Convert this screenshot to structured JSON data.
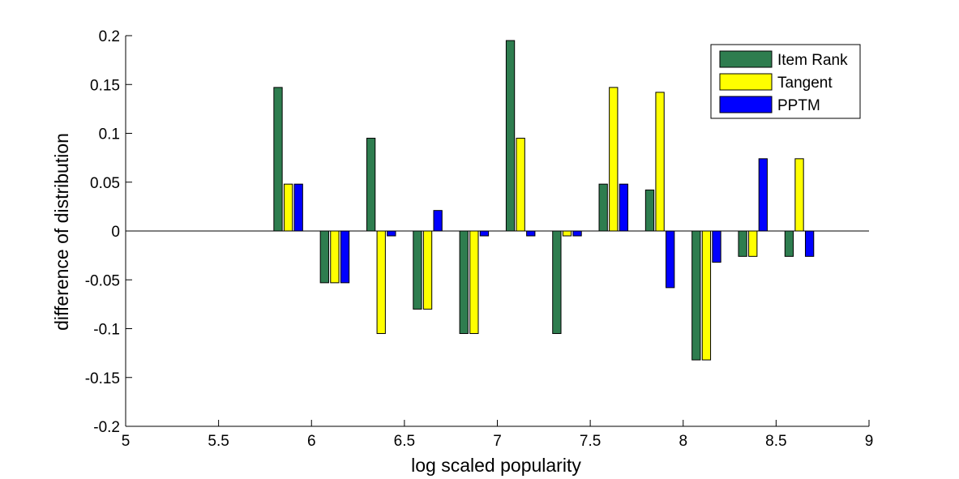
{
  "chart_data": {
    "type": "bar",
    "xlabel": "log scaled popularity",
    "ylabel": "difference of distribution",
    "xlim": [
      5,
      9
    ],
    "ylim": [
      -0.2,
      0.2
    ],
    "xticks": [
      "5",
      "5.5",
      "6",
      "6.5",
      "7",
      "7.5",
      "8",
      "8.5",
      "9"
    ],
    "yticks": [
      "-0.2",
      "-0.15",
      "-0.1",
      "-0.05",
      "0",
      "0.05",
      "0.1",
      "0.15",
      "0.2"
    ],
    "x": [
      5.875,
      6.125,
      6.375,
      6.625,
      6.875,
      7.125,
      7.375,
      7.625,
      7.875,
      8.125,
      8.375,
      8.625
    ],
    "series": [
      {
        "name": "Item Rank",
        "color": "#2e7d4f",
        "values": [
          0.147,
          -0.053,
          0.095,
          -0.08,
          -0.105,
          0.195,
          -0.105,
          0.048,
          0.042,
          -0.132,
          -0.026,
          -0.026
        ]
      },
      {
        "name": "Tangent",
        "color": "#ffff00",
        "values": [
          0.048,
          -0.053,
          -0.105,
          -0.08,
          -0.105,
          0.095,
          -0.005,
          0.147,
          0.142,
          -0.132,
          -0.026,
          0.074
        ]
      },
      {
        "name": "PPTM",
        "color": "#0000ff",
        "values": [
          0.048,
          -0.053,
          -0.005,
          0.021,
          -0.005,
          -0.005,
          -0.005,
          0.048,
          -0.058,
          -0.032,
          0.074,
          -0.026
        ]
      }
    ],
    "legend_position": "top-right",
    "grid": false
  }
}
